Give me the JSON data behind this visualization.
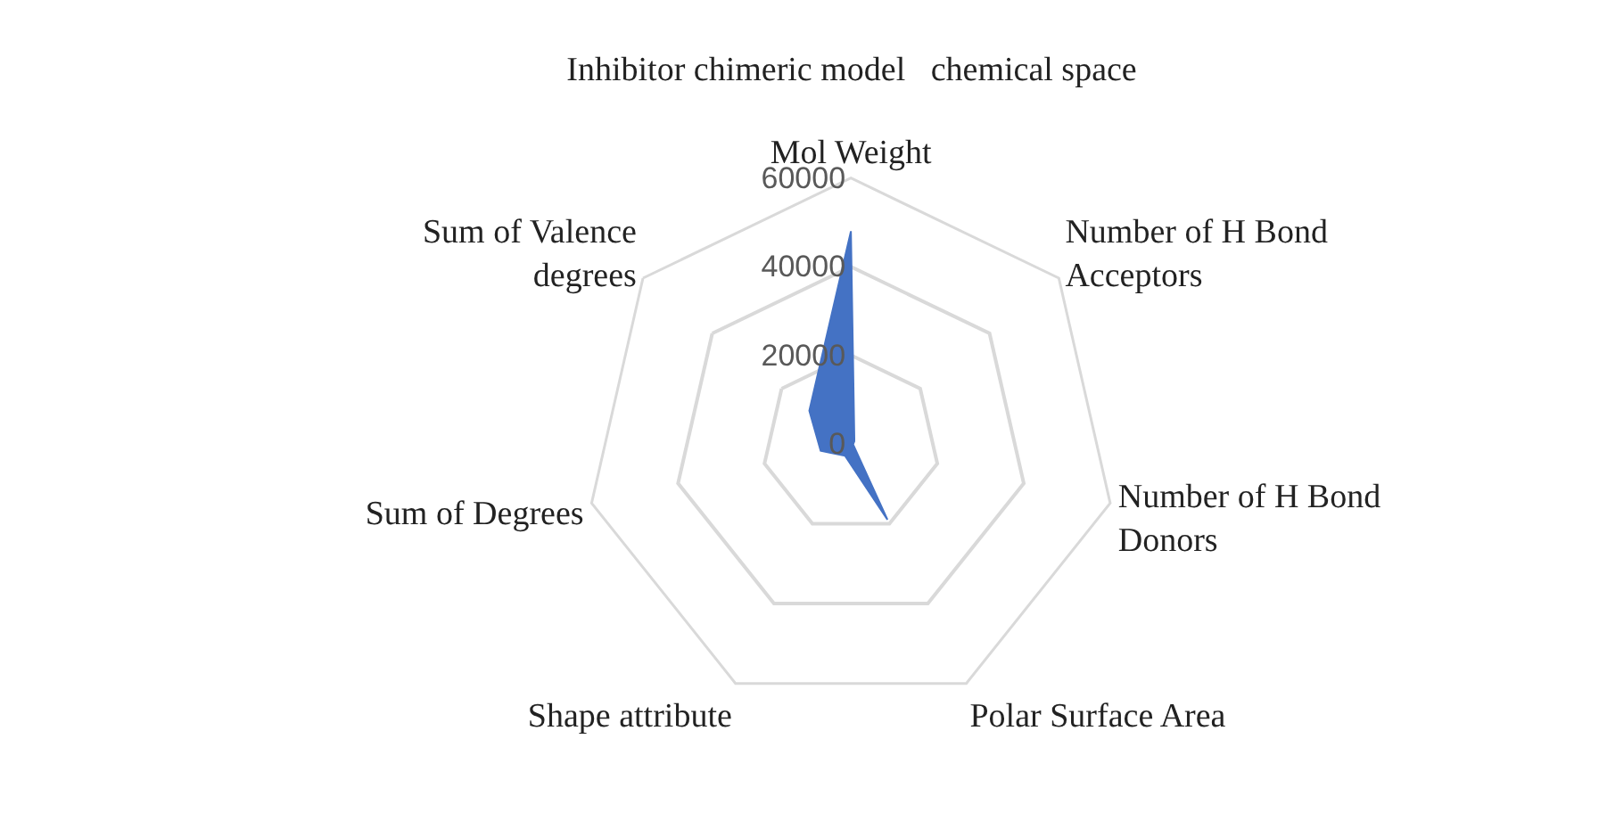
{
  "chart_data": {
    "type": "radar",
    "title": "Inhibitor chimeric model   chemical space",
    "categories": [
      "Mol Weight",
      "Number of H Bond Acceptors",
      "Number of H Bond Donors",
      "Polar Surface Area",
      "Shape attribute",
      "Sum of Degrees",
      "Sum of Valence degrees"
    ],
    "series": [
      {
        "color": "#4472c4",
        "values": [
          48000,
          1000,
          500,
          19000,
          3000,
          7000,
          12000
        ]
      }
    ],
    "ylim": [
      0,
      60000
    ],
    "yticks": [
      0,
      20000,
      40000,
      60000
    ],
    "grid": true
  }
}
